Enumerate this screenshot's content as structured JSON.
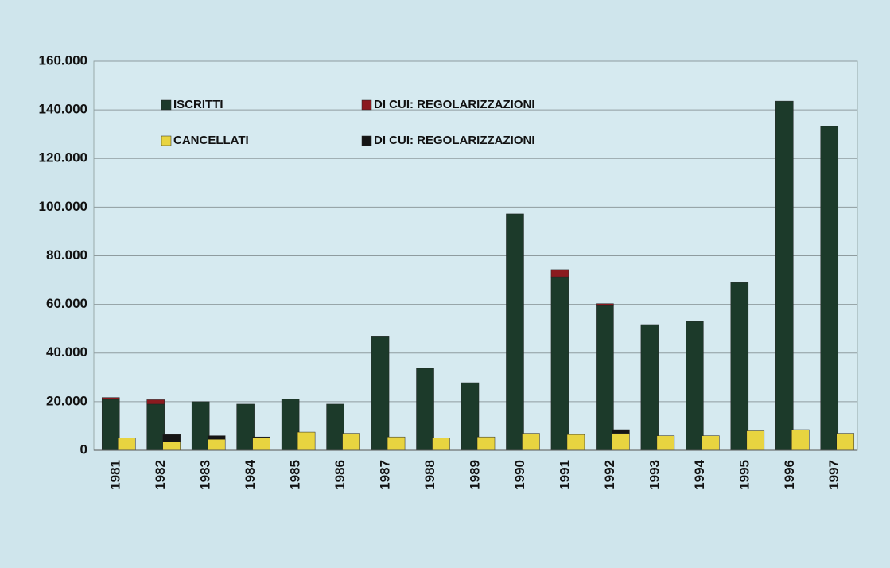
{
  "chart_data": {
    "type": "bar",
    "categories": [
      "1981",
      "1982",
      "1983",
      "1984",
      "1985",
      "1986",
      "1987",
      "1988",
      "1989",
      "1990",
      "1991",
      "1992",
      "1993",
      "1994",
      "1995",
      "1996",
      "1997"
    ],
    "series": [
      {
        "name": "ISCRITTI",
        "color": "#1c3a2a",
        "values": [
          21000,
          19000,
          20000,
          19000,
          21000,
          19000,
          47000,
          33700,
          27800,
          97200,
          71300,
          59500,
          51700,
          53000,
          69000,
          143600,
          133200
        ]
      },
      {
        "name": "DI CUI: REGOLARIZZAZIONI",
        "color": "#8b1a1f",
        "values": [
          700,
          1800,
          0,
          0,
          0,
          0,
          0,
          0,
          0,
          0,
          3000,
          800,
          0,
          0,
          0,
          0,
          0
        ]
      },
      {
        "name": "CANCELLATI",
        "color": "#e8d440",
        "values": [
          5000,
          3500,
          4500,
          5000,
          7500,
          7000,
          5500,
          5000,
          5500,
          7000,
          6500,
          7000,
          6000,
          6000,
          8000,
          8500,
          7000
        ]
      },
      {
        "name": "DI CUI: REGOLARIZZAZIONI",
        "color": "#151515",
        "values": [
          0,
          3000,
          1500,
          500,
          0,
          0,
          0,
          0,
          0,
          0,
          0,
          1500,
          0,
          0,
          0,
          0,
          0
        ]
      }
    ],
    "ylim": [
      0,
      160000
    ],
    "yticks": [
      0,
      {
        "value": 20000,
        "label": "20.000"
      },
      {
        "value": 40000,
        "label": "40.000"
      },
      {
        "value": 60000,
        "label": "60.000"
      },
      {
        "value": 80000,
        "label": "80.000"
      },
      {
        "value": 100000,
        "label": "100.000"
      },
      {
        "value": 120000,
        "label": "120.000"
      },
      {
        "value": 140000,
        "label": "140.000"
      },
      {
        "value": 160000,
        "label": "160.000"
      }
    ],
    "grid": true
  }
}
